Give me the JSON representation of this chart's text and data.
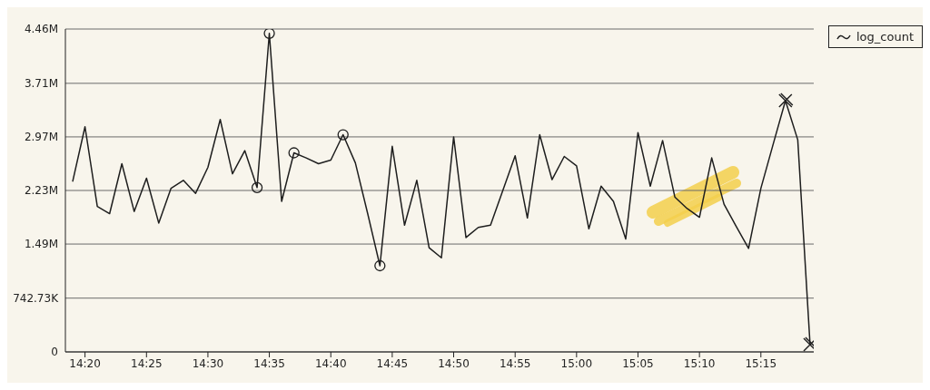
{
  "chart_data": {
    "type": "line",
    "xlim": [
      14.3067,
      15.3217
    ],
    "xticks": [
      {
        "value": 14.3333,
        "label": "14:20"
      },
      {
        "value": 14.4167,
        "label": "14:25"
      },
      {
        "value": 14.5,
        "label": "14:30"
      },
      {
        "value": 14.5833,
        "label": "14:35"
      },
      {
        "value": 14.6667,
        "label": "14:40"
      },
      {
        "value": 14.75,
        "label": "14:45"
      },
      {
        "value": 14.8333,
        "label": "14:50"
      },
      {
        "value": 14.9167,
        "label": "14:55"
      },
      {
        "value": 15.0,
        "label": "15:00"
      },
      {
        "value": 15.0833,
        "label": "15:05"
      },
      {
        "value": 15.1667,
        "label": "15:10"
      },
      {
        "value": 15.25,
        "label": "15:15"
      }
    ],
    "ylim": [
      0,
      4460000
    ],
    "yticks": [
      0,
      {
        "value": 742730,
        "label": "742.73K"
      },
      {
        "value": 1490000,
        "label": "1.49M"
      },
      {
        "value": 2230000,
        "label": "2.23M"
      },
      {
        "value": 2970000,
        "label": "2.97M"
      },
      {
        "value": 3710000,
        "label": "3.71M"
      },
      {
        "value": 4460000,
        "label": "4.46M"
      }
    ],
    "grid": "y",
    "legend": "top right",
    "line_style": "solid",
    "series": [
      {
        "name": "log_count",
        "marker": "none",
        "color": "#1e1e1e",
        "x": [
          14.3167,
          14.3333,
          14.35,
          14.3667,
          14.3833,
          14.4,
          14.4167,
          14.4333,
          14.45,
          14.4667,
          14.4833,
          14.5,
          14.5167,
          14.5333,
          14.55,
          14.5667,
          14.5833,
          14.6,
          14.6167,
          14.6333,
          14.65,
          14.6667,
          14.6833,
          14.7,
          14.7167,
          14.7333,
          14.75,
          14.7667,
          14.7833,
          14.8,
          14.8167,
          14.8333,
          14.85,
          14.8667,
          14.8833,
          14.9,
          14.9167,
          14.9333,
          14.95,
          14.9667,
          14.9833,
          15.0,
          15.0167,
          15.0333,
          15.05,
          15.0667,
          15.0833,
          15.1,
          15.1167,
          15.1333,
          15.15,
          15.1667,
          15.1833,
          15.2,
          15.2167,
          15.2333,
          15.25,
          15.2667,
          15.2833,
          15.3,
          15.3167
        ],
        "values": [
          2360000,
          3110000,
          2010000,
          1910000,
          2600000,
          1940000,
          2400000,
          1780000,
          2260000,
          2370000,
          2190000,
          2550000,
          3210000,
          2460000,
          2780000,
          2270000,
          4400000,
          2080000,
          2750000,
          2680000,
          2600000,
          2650000,
          3000000,
          2610000,
          1910000,
          1190000,
          2840000,
          1750000,
          2370000,
          1440000,
          1300000,
          2970000,
          1580000,
          1720000,
          1750000,
          2230000,
          2710000,
          1850000,
          3000000,
          2380000,
          2700000,
          2570000,
          1700000,
          2290000,
          2080000,
          1560000,
          3030000,
          2290000,
          2920000,
          2140000,
          1980000,
          1860000,
          2680000,
          2040000,
          1730000,
          1430000,
          2260000,
          2870000,
          3470000,
          2930000,
          100000
        ]
      },
      {
        "type": "scatter",
        "marker": "circle",
        "color": "#1e1e1e",
        "x": [
          14.5667,
          14.5833,
          14.6167,
          14.6833,
          14.7333
        ],
        "values": [
          2270000,
          4400000,
          2750000,
          3000000,
          1190000
        ]
      },
      {
        "type": "scatter",
        "marker": "cross",
        "color": "#1e1e1e",
        "x": [
          15.2833,
          15.3167
        ],
        "values": [
          3470000,
          100000
        ]
      }
    ]
  }
}
